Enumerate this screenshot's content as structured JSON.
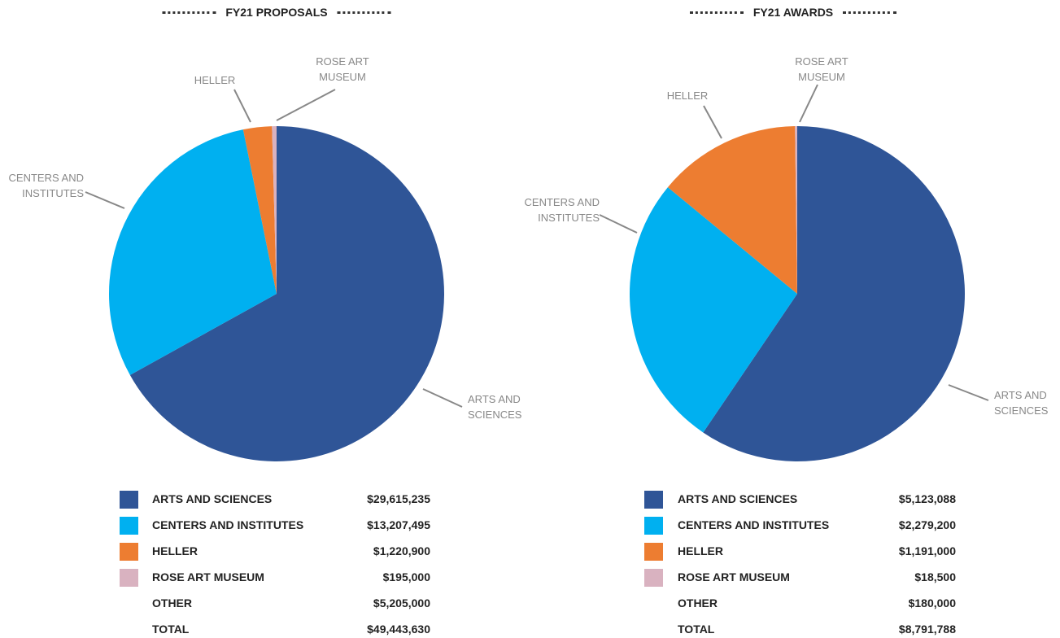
{
  "chart_data": [
    {
      "type": "pie",
      "title": "FY21 PROPOSALS",
      "categories": [
        "ARTS AND SCIENCES",
        "CENTERS AND INSTITUTES",
        "HELLER",
        "ROSE ART MUSEUM"
      ],
      "values": [
        29615235,
        13207495,
        1220900,
        195000
      ],
      "value_labels": [
        "$29,615,235",
        "$13,207,495",
        "$1,220,900",
        "$195,000"
      ],
      "colors": [
        "#2f5597",
        "#00b0f0",
        "#ed7d31",
        "#d9b2c0"
      ],
      "extra_rows": [
        {
          "label": "OTHER",
          "value": 5205000,
          "value_label": "$5,205,000"
        },
        {
          "label": "TOTAL",
          "value": 49443630,
          "value_label": "$49,443,630"
        }
      ]
    },
    {
      "type": "pie",
      "title": "FY21 AWARDS",
      "categories": [
        "ARTS AND SCIENCES",
        "CENTERS AND INSTITUTES",
        "HELLER",
        "ROSE ART MUSEUM"
      ],
      "values": [
        5123088,
        2279200,
        1191000,
        18500
      ],
      "value_labels": [
        "$5,123,088",
        "$2,279,200",
        "$1,191,000",
        "$18,500"
      ],
      "colors": [
        "#2f5597",
        "#00b0f0",
        "#ed7d31",
        "#d9b2c0"
      ],
      "extra_rows": [
        {
          "label": "OTHER",
          "value": 180000,
          "value_label": "$180,000"
        },
        {
          "label": "TOTAL",
          "value": 8791788,
          "value_label": "$8,791,788"
        }
      ]
    }
  ]
}
